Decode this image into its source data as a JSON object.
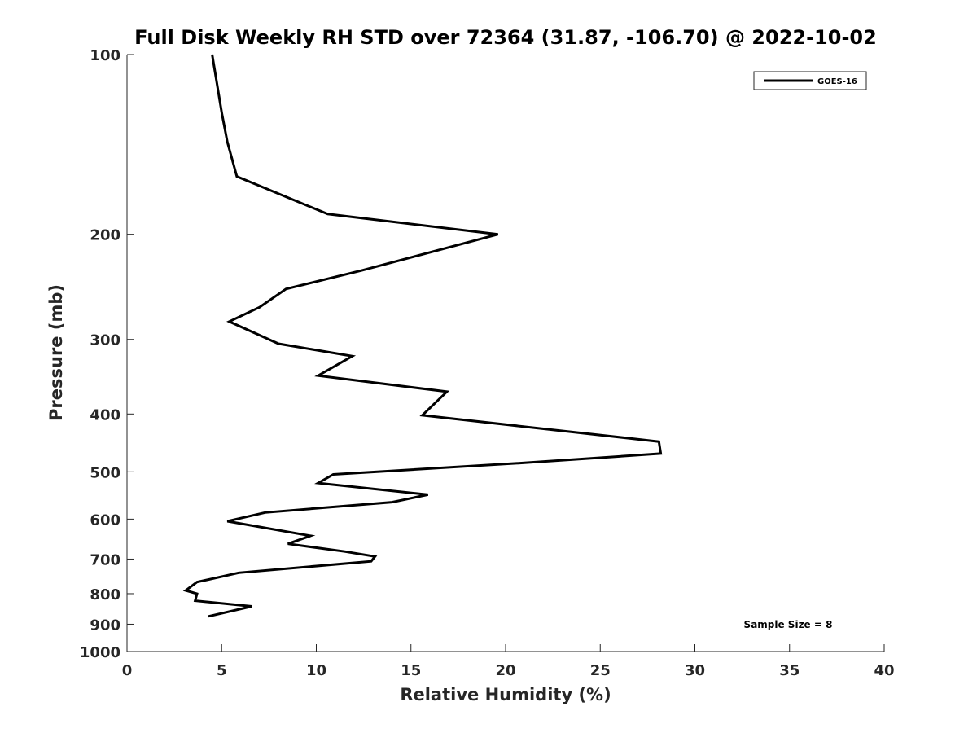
{
  "chart_data": {
    "type": "line",
    "title": "Full Disk Weekly RH STD over 72364 (31.87, -106.70) @ 2022-10-02",
    "xlabel": "Relative Humidity (%)",
    "ylabel": "Pressure (mb)",
    "xlim": [
      0,
      40
    ],
    "ylim": [
      100,
      1000
    ],
    "y_scale": "log",
    "y_reversed": true,
    "grid": false,
    "legend_position": "top-right",
    "x_ticks": [
      0,
      5,
      10,
      15,
      20,
      25,
      30,
      35,
      40
    ],
    "x_tick_labels": [
      "0",
      "5",
      "10",
      "15",
      "20",
      "25",
      "30",
      "35",
      "40"
    ],
    "y_ticks": [
      100,
      200,
      300,
      400,
      500,
      600,
      700,
      800,
      900,
      1000
    ],
    "y_tick_labels": [
      "100",
      "200",
      "300",
      "400",
      "500",
      "600",
      "700",
      "800",
      "900",
      "1000"
    ],
    "annotation": "Sample Size = 8",
    "series": [
      {
        "name": "GOES-16",
        "color": "#000000",
        "x": [
          4.5,
          5.0,
          5.3,
          5.8,
          10.6,
          19.6,
          12.4,
          8.4,
          7.0,
          5.4,
          8.0,
          11.9,
          10.1,
          16.9,
          15.6,
          28.1,
          28.2,
          21.0,
          10.9,
          10.1,
          15.9,
          14.0,
          7.3,
          5.3,
          9.7,
          8.5,
          11.5,
          13.1,
          12.9,
          5.9,
          3.7,
          3.1,
          3.7,
          3.6,
          6.6,
          4.3
        ],
        "y": [
          100,
          125,
          140,
          160,
          185,
          200,
          230,
          247,
          265,
          280,
          305,
          320,
          345,
          367,
          402,
          445,
          466,
          483,
          505,
          522,
          546,
          562,
          585,
          605,
          640,
          660,
          680,
          693,
          706,
          738,
          765,
          790,
          800,
          822,
          840,
          873
        ]
      }
    ]
  }
}
